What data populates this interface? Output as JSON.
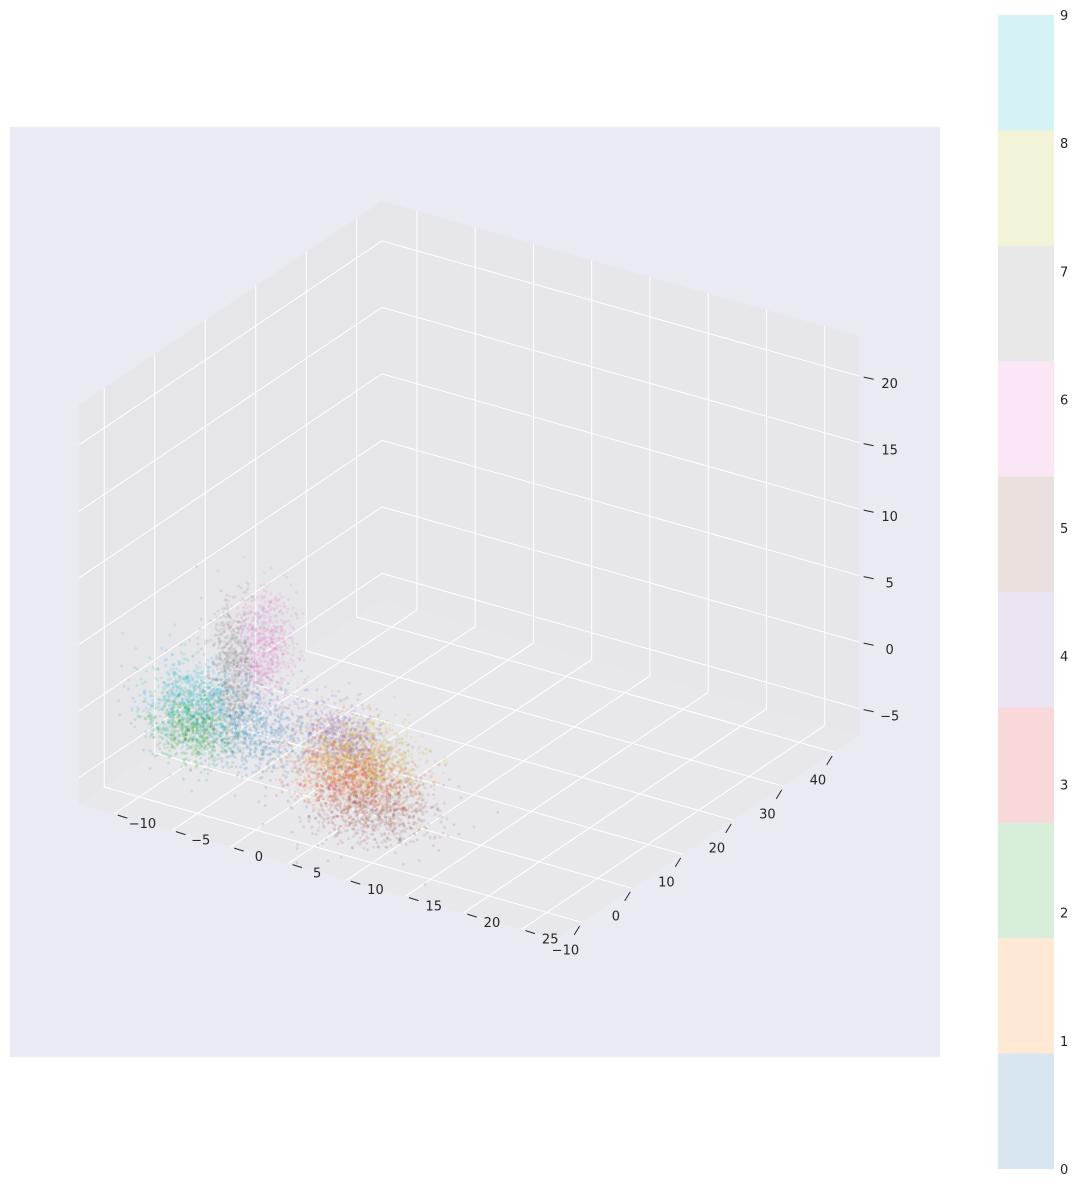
{
  "chart_data": {
    "type": "scatter",
    "projection": "3d",
    "title": "",
    "xlabel": "",
    "ylabel": "",
    "zlabel": "",
    "xlim": [
      -15,
      45
    ],
    "ylim": [
      -13,
      28
    ],
    "zlim": [
      -7,
      23
    ],
    "x_ticks": [
      "40",
      "30",
      "20",
      "10",
      "0",
      "−10"
    ],
    "y_ticks": [
      "−10",
      "−5",
      "0",
      "5",
      "10",
      "15",
      "20",
      "25"
    ],
    "z_ticks": [
      "−5",
      "0",
      "5",
      "10",
      "15",
      "20"
    ],
    "grid": true,
    "legend": "none",
    "colorbar": {
      "position": "right",
      "tick_labels": [
        "0",
        "1",
        "2",
        "3",
        "4",
        "5",
        "6",
        "7",
        "8",
        "9"
      ]
    },
    "background_color": "#eaeaf2",
    "point_alpha": 0.15,
    "series": [
      {
        "label": "0",
        "color": "#1f77b4",
        "approx_center": [
          -4,
          -3,
          -2
        ]
      },
      {
        "label": "1",
        "color": "#ff7f0e",
        "approx_center": [
          -2,
          4,
          -3
        ]
      },
      {
        "label": "2",
        "color": "#2ca02c",
        "approx_center": [
          -9,
          -6,
          -1
        ]
      },
      {
        "label": "3",
        "color": "#d62728",
        "approx_center": [
          -3,
          6,
          -4
        ]
      },
      {
        "label": "4",
        "color": "#9467bd",
        "approx_center": [
          0,
          3,
          -2
        ]
      },
      {
        "label": "5",
        "color": "#8c564b",
        "approx_center": [
          -5,
          8,
          -5
        ]
      },
      {
        "label": "6",
        "color": "#e377c2",
        "approx_center": [
          1,
          -4,
          3
        ]
      },
      {
        "label": "7",
        "color": "#7f7f7f",
        "approx_center": [
          -3,
          -5,
          2
        ]
      },
      {
        "label": "8",
        "color": "#bcbd22",
        "approx_center": [
          0,
          5,
          -3
        ]
      },
      {
        "label": "9",
        "color": "#17becf",
        "approx_center": [
          -6,
          -7,
          0
        ]
      }
    ]
  }
}
